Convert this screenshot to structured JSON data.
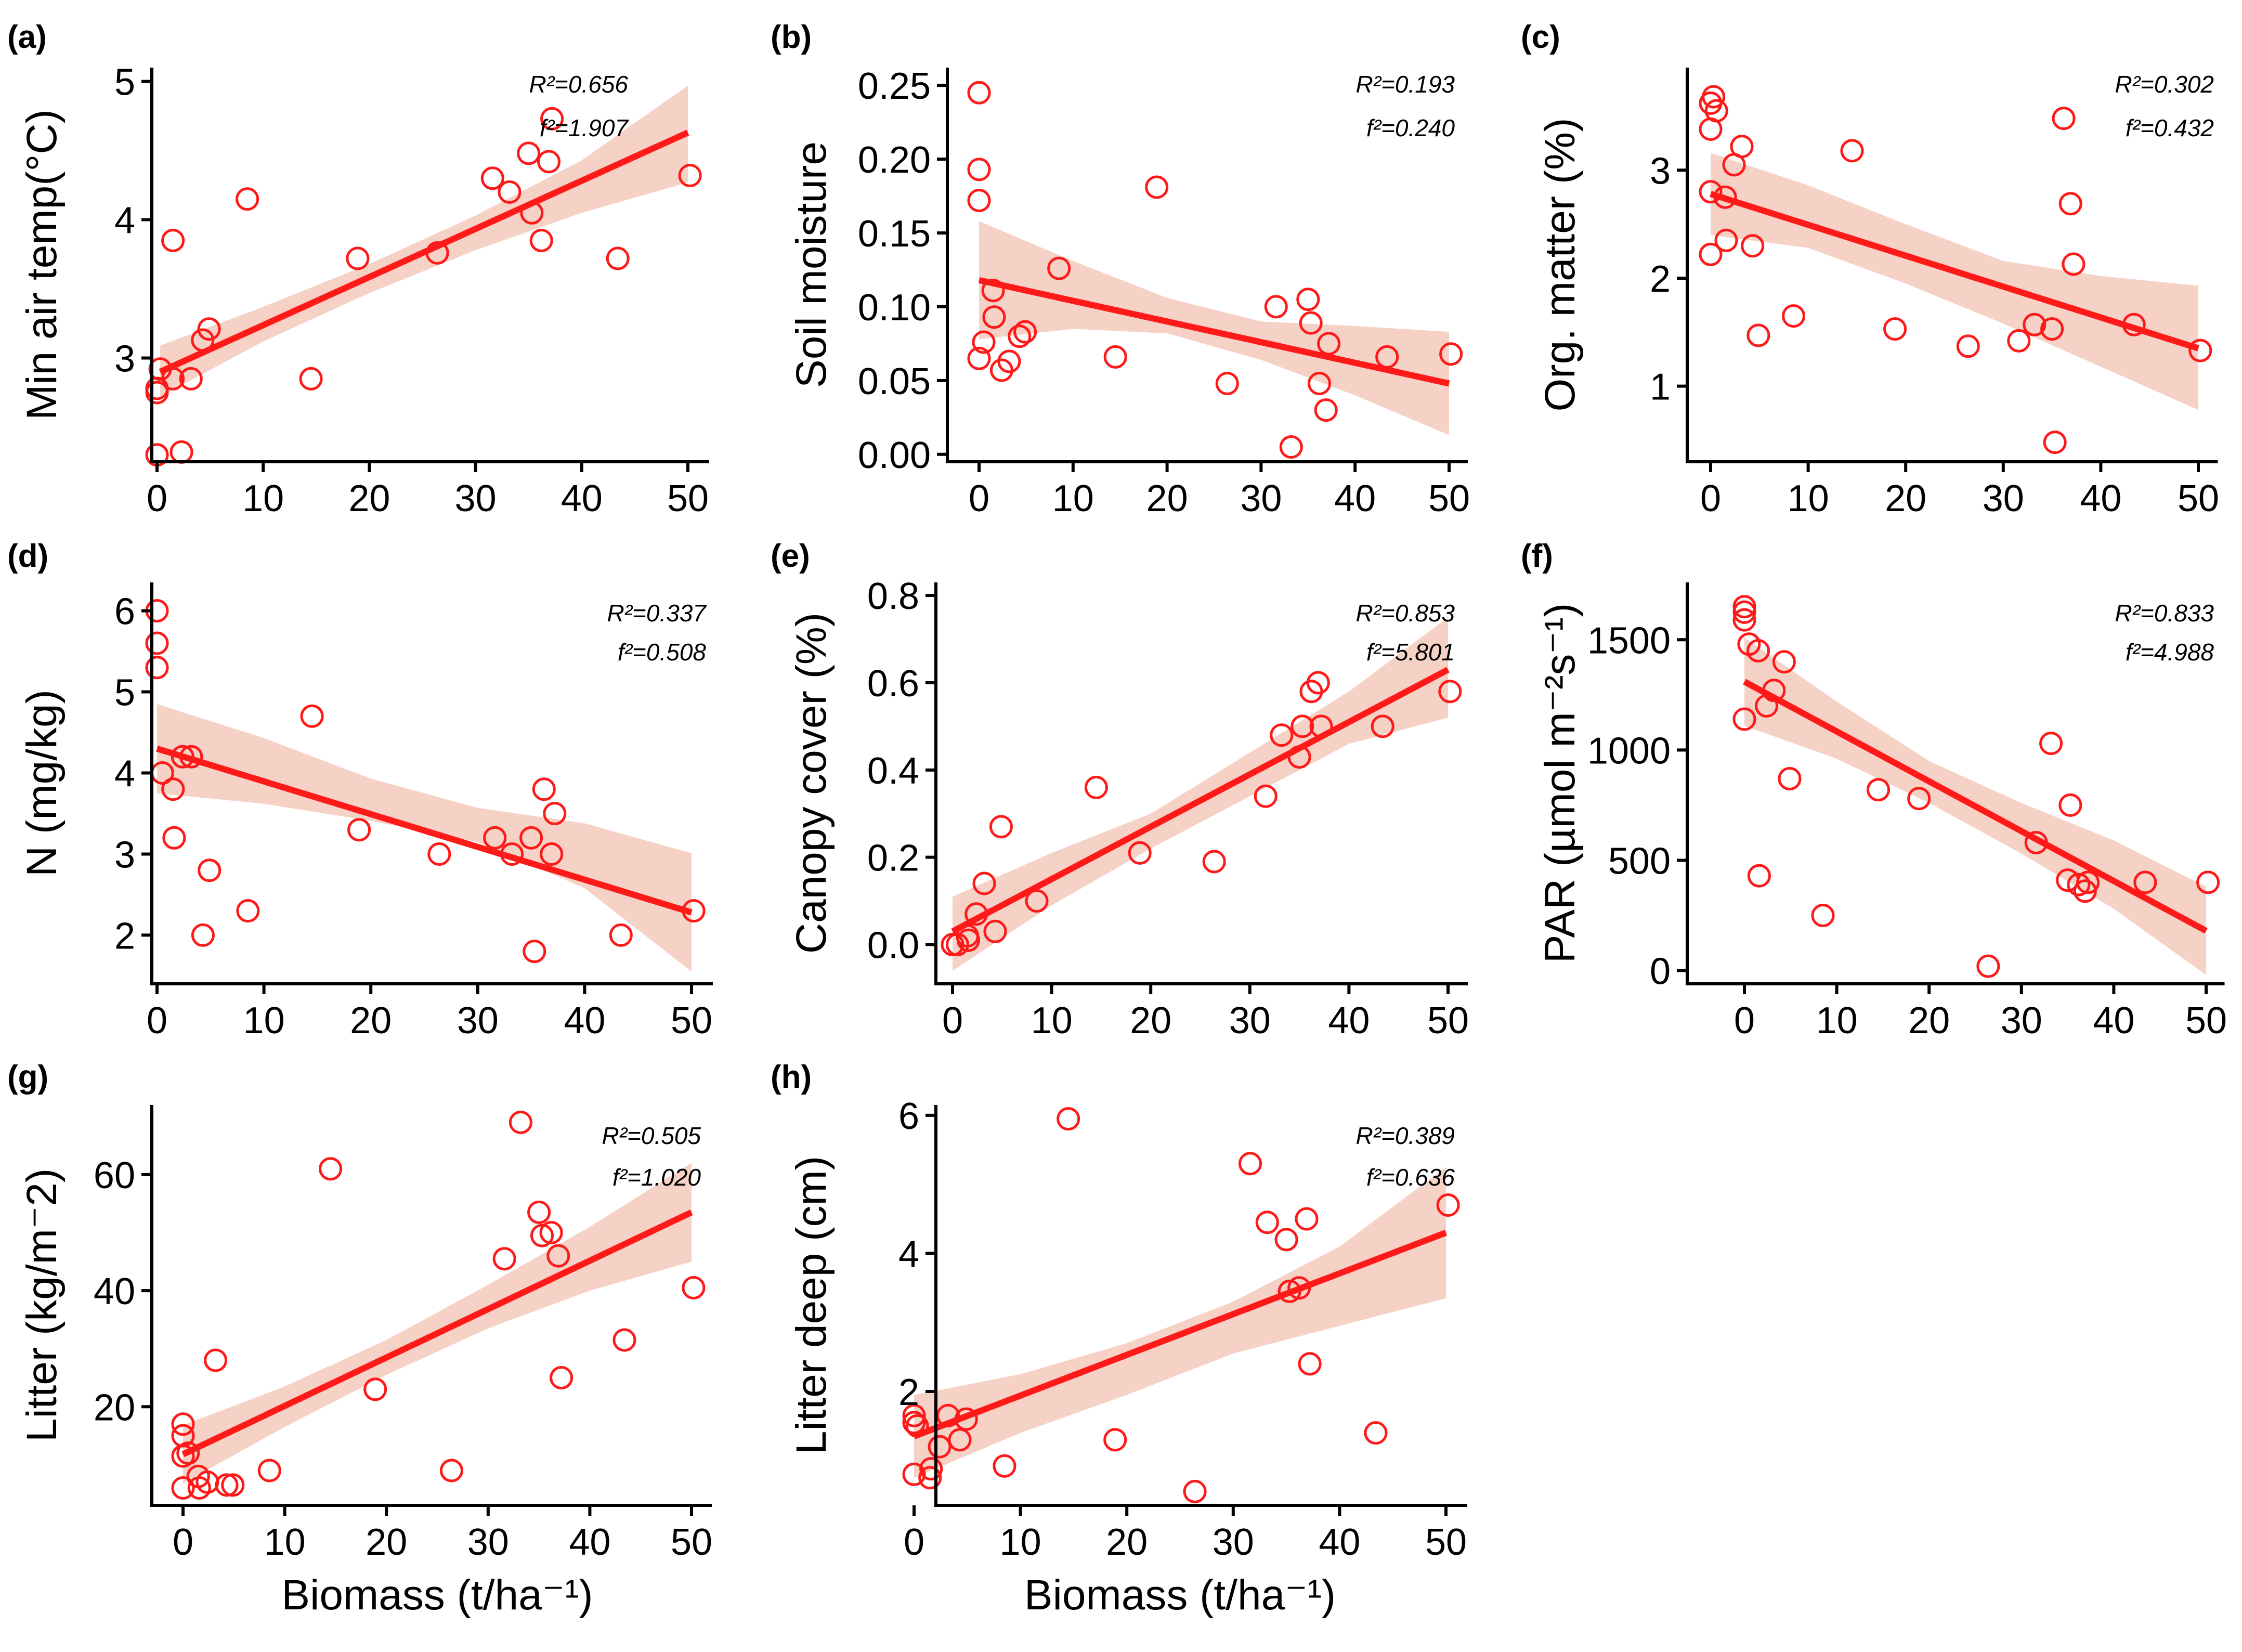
{
  "chart_data": [
    {
      "type": "scatter",
      "panel": "(a)",
      "ylabel": "Min air temp(°C)",
      "xlabel": "",
      "r2": "R²=0.656",
      "f2": "f²=1.907",
      "xlim": [
        -2,
        52
      ],
      "ylim": [
        2.25,
        5.1
      ],
      "xticks": [
        0,
        10,
        20,
        30,
        40,
        50
      ],
      "yticks": [
        3,
        4,
        5
      ],
      "x": [
        0,
        0,
        0,
        0.3,
        1.5,
        1.5,
        2.3,
        3.2,
        4.3,
        4.9,
        8.5,
        14.5,
        18.9,
        26.4,
        31.6,
        33.2,
        35,
        35.3,
        36.2,
        36.9,
        37.2,
        43.4,
        50.2
      ],
      "y": [
        2.3,
        2.75,
        2.78,
        2.92,
        2.85,
        3.85,
        2.32,
        2.85,
        3.13,
        3.21,
        4.15,
        2.85,
        3.72,
        3.76,
        4.3,
        4.2,
        4.48,
        4.05,
        3.85,
        4.42,
        4.73,
        3.72,
        4.32
      ],
      "fit": {
        "x0": 0.3,
        "y0": 2.9,
        "x1": 50,
        "y1": 4.63
      },
      "band": {
        "x": [
          0.3,
          10,
          20,
          30,
          40,
          50
        ],
        "lo": [
          2.72,
          3.12,
          3.47,
          3.78,
          4.05,
          4.27
        ],
        "hi": [
          3.09,
          3.37,
          3.68,
          4.03,
          4.43,
          4.97
        ]
      }
    },
    {
      "type": "scatter",
      "panel": "(b)",
      "ylabel": "Soil moisture",
      "xlabel": "",
      "r2": "R²=0.193",
      "f2": "f²=0.240",
      "xlim": [
        -3,
        52
      ],
      "ylim": [
        -0.005,
        0.262
      ],
      "xticks": [
        0,
        10,
        20,
        30,
        40,
        50
      ],
      "yticks": [
        0,
        0.05,
        0.1,
        0.15,
        0.2,
        0.25
      ],
      "yticklabels": [
        "0.00",
        "0.05",
        "0.10",
        "0.15",
        "0.20",
        "0.25"
      ],
      "x": [
        0,
        0,
        0,
        0,
        0.5,
        1.5,
        1.6,
        2.4,
        3.2,
        4.3,
        4.9,
        8.5,
        14.5,
        18.9,
        26.4,
        31.6,
        33.2,
        35,
        35.3,
        36.2,
        36.9,
        37.2,
        43.4,
        50.2
      ],
      "y": [
        0.245,
        0.193,
        0.172,
        0.065,
        0.076,
        0.111,
        0.093,
        0.057,
        0.063,
        0.08,
        0.083,
        0.126,
        0.066,
        0.181,
        0.048,
        0.1,
        0.005,
        0.105,
        0.089,
        0.048,
        0.03,
        0.075,
        0.066,
        0.068
      ],
      "fit": {
        "x0": 0,
        "y0": 0.118,
        "x1": 50,
        "y1": 0.048
      },
      "band": {
        "x": [
          0,
          10,
          20,
          30,
          40,
          50
        ],
        "lo": [
          0.078,
          0.085,
          0.082,
          0.064,
          0.04,
          0.013
        ],
        "hi": [
          0.158,
          0.131,
          0.106,
          0.09,
          0.087,
          0.083
        ]
      }
    },
    {
      "type": "scatter",
      "panel": "(c)",
      "ylabel": "Org. matter (%)",
      "xlabel": "",
      "r2": "R²=0.302",
      "f2": "f²=0.432",
      "xlim": [
        -2,
        52
      ],
      "ylim": [
        0.3,
        3.95
      ],
      "xticks": [
        0,
        10,
        20,
        30,
        40,
        50
      ],
      "yticks": [
        1,
        2,
        3
      ],
      "x": [
        0,
        0,
        0,
        0,
        0.3,
        0.6,
        1.5,
        1.6,
        2.4,
        3.2,
        4.3,
        4.9,
        8.5,
        14.5,
        18.9,
        26.4,
        31.6,
        33.2,
        35,
        35.3,
        36.2,
        36.9,
        37.2,
        43.4,
        50.2
      ],
      "y": [
        3.62,
        3.38,
        2.8,
        2.22,
        3.68,
        3.55,
        2.75,
        2.35,
        3.05,
        3.22,
        2.3,
        1.47,
        1.65,
        3.18,
        1.53,
        1.37,
        1.42,
        1.57,
        1.53,
        0.48,
        3.48,
        2.69,
        2.13,
        1.57,
        1.33
      ],
      "fit": {
        "x0": 0,
        "y0": 2.78,
        "x1": 50,
        "y1": 1.35
      },
      "band": {
        "x": [
          0,
          10,
          20,
          30,
          40,
          50
        ],
        "lo": [
          2.4,
          2.28,
          1.95,
          1.58,
          1.18,
          0.78
        ],
        "hi": [
          3.16,
          2.86,
          2.5,
          2.16,
          2.02,
          1.93
        ]
      }
    },
    {
      "type": "scatter",
      "panel": "(d)",
      "ylabel": "N (mg/kg)",
      "xlabel": "",
      "r2": "R²=0.337",
      "f2": "f²=0.508",
      "xlim": [
        -2,
        52
      ],
      "ylim": [
        1.4,
        6.35
      ],
      "xticks": [
        0,
        10,
        20,
        30,
        40,
        50
      ],
      "yticks": [
        2,
        3,
        4,
        5,
        6
      ],
      "x": [
        0,
        0,
        0,
        0.5,
        1.5,
        1.6,
        2.4,
        3.2,
        4.3,
        4.9,
        8.5,
        14.5,
        18.9,
        26.4,
        31.6,
        33.2,
        35,
        35.3,
        36.2,
        36.9,
        37.2,
        43.4,
        50.2
      ],
      "y": [
        6.0,
        5.6,
        5.3,
        4.0,
        3.8,
        3.2,
        4.2,
        4.2,
        2.0,
        2.8,
        2.3,
        4.7,
        3.3,
        3.0,
        3.2,
        3.0,
        3.2,
        1.8,
        3.8,
        3.0,
        3.5,
        2.0,
        2.3
      ],
      "fit": {
        "x0": 0,
        "y0": 4.3,
        "x1": 50,
        "y1": 2.28
      },
      "band": {
        "x": [
          0,
          10,
          20,
          30,
          40,
          50
        ],
        "lo": [
          3.75,
          3.62,
          3.41,
          3.15,
          2.58,
          1.55
        ],
        "hi": [
          4.85,
          4.43,
          3.93,
          3.57,
          3.38,
          3.01
        ]
      }
    },
    {
      "type": "scatter",
      "panel": "(e)",
      "ylabel": "Canopy cover (%)",
      "xlabel": "",
      "r2": "R²=0.853",
      "f2": "f²=5.801",
      "xlim": [
        -3,
        52
      ],
      "ylim": [
        -0.09,
        0.83
      ],
      "xticks": [
        0,
        10,
        20,
        30,
        40,
        50
      ],
      "yticks": [
        0,
        0.2,
        0.4,
        0.6,
        0.8
      ],
      "yticklabels": [
        "0.0",
        "0.2",
        "0.4",
        "0.6",
        "0.8"
      ],
      "x": [
        0,
        0.5,
        1.5,
        1.6,
        2.4,
        3.2,
        4.3,
        4.9,
        8.5,
        14.5,
        18.9,
        26.4,
        31.6,
        33.2,
        35,
        35.3,
        36.2,
        36.9,
        37.2,
        43.4,
        50.2
      ],
      "y": [
        0,
        0,
        0.02,
        0.01,
        0.07,
        0.14,
        0.03,
        0.27,
        0.1,
        0.36,
        0.21,
        0.19,
        0.34,
        0.48,
        0.43,
        0.5,
        0.58,
        0.6,
        0.5,
        0.5,
        0.58
      ],
      "fit": {
        "x0": 0,
        "y0": 0.03,
        "x1": 50,
        "y1": 0.63
      },
      "band": {
        "x": [
          0,
          10,
          20,
          30,
          40,
          50
        ],
        "lo": [
          -0.06,
          0.09,
          0.22,
          0.34,
          0.46,
          0.52
        ],
        "hi": [
          0.11,
          0.21,
          0.3,
          0.44,
          0.58,
          0.75
        ]
      }
    },
    {
      "type": "scatter",
      "panel": "(f)",
      "ylabel": "PAR (µmol m⁻²s⁻¹)",
      "xlabel": "",
      "r2": "R²=0.833",
      "f2": "f²=4.988",
      "xlim": [
        -2,
        52
      ],
      "ylim": [
        -60,
        1760
      ],
      "xticks": [
        0,
        10,
        20,
        30,
        40,
        50
      ],
      "yticks": [
        0,
        500,
        1000,
        1500
      ],
      "x": [
        0,
        0,
        0,
        0,
        0.5,
        1.5,
        1.6,
        2.4,
        3.2,
        4.3,
        4.9,
        8.5,
        14.5,
        18.9,
        26.4,
        31.6,
        33.2,
        35,
        35.3,
        36.2,
        36.9,
        37.2,
        43.4,
        50.2
      ],
      "y": [
        1650,
        1625,
        1590,
        1140,
        1480,
        1450,
        430,
        1200,
        1270,
        1400,
        870,
        250,
        820,
        780,
        20,
        580,
        1030,
        410,
        750,
        390,
        360,
        400,
        400,
        400
      ],
      "fit": {
        "x0": 0,
        "y0": 1310,
        "x1": 50,
        "y1": 180
      },
      "band": {
        "x": [
          0,
          10,
          20,
          30,
          40,
          50
        ],
        "lo": [
          1110,
          960,
          760,
          530,
          280,
          -20
        ],
        "hi": [
          1510,
          1220,
          950,
          760,
          590,
          380
        ]
      }
    },
    {
      "type": "scatter",
      "panel": "(g)",
      "ylabel": "Litter (kg/m⁻2)",
      "xlabel": "Biomass (t/ha⁻¹)",
      "r2": "R²=0.505",
      "f2": "f²=1.020",
      "xlim": [
        -2,
        52
      ],
      "ylim": [
        3,
        72
      ],
      "xticks": [
        0,
        10,
        20,
        30,
        40,
        50
      ],
      "yticks": [
        20,
        40,
        60
      ],
      "x": [
        0,
        0,
        0,
        0,
        0.5,
        1.5,
        1.6,
        2.4,
        3.2,
        4.3,
        4.9,
        8.5,
        14.5,
        18.9,
        26.4,
        31.6,
        33.2,
        35,
        35.3,
        36.2,
        36.9,
        37.2,
        43.4,
        50.2
      ],
      "y": [
        17,
        15,
        11.5,
        6,
        12,
        8,
        6,
        7,
        28,
        6.5,
        6.5,
        9,
        61,
        23,
        9,
        45.5,
        69,
        53.5,
        49.5,
        50,
        46,
        25,
        31.5,
        40.5
      ],
      "fit": {
        "x0": 0,
        "y0": 11.8,
        "x1": 50,
        "y1": 53.5
      },
      "band": {
        "x": [
          0,
          10,
          20,
          30,
          40,
          50
        ],
        "lo": [
          6.8,
          16.5,
          25.5,
          33.5,
          40,
          45
        ],
        "hi": [
          16.8,
          23.5,
          31.5,
          41,
          51,
          62
        ]
      }
    },
    {
      "type": "scatter",
      "panel": "(h)",
      "ylabel": "Litter deep (cm)",
      "xlabel": "Biomass (t/ha⁻¹)",
      "r2": "R²=0.389",
      "f2": "f²=0.636",
      "xlim": [
        -3,
        52
      ],
      "ylim": [
        0.35,
        6.15
      ],
      "xticks": [
        0,
        10,
        20,
        30,
        40,
        50
      ],
      "yticks": [
        2,
        4,
        6
      ],
      "x": [
        0,
        0,
        0,
        0.3,
        1.5,
        1.6,
        2.4,
        3.2,
        4.3,
        4.9,
        8.5,
        14.5,
        18.9,
        26.4,
        31.6,
        33.2,
        35,
        35.3,
        36.2,
        36.9,
        37.2,
        43.4,
        50.2
      ],
      "y": [
        1.65,
        1.55,
        0.8,
        1.5,
        0.75,
        0.88,
        1.2,
        1.65,
        1.3,
        1.6,
        0.92,
        5.95,
        1.3,
        0.55,
        5.3,
        4.45,
        4.2,
        3.45,
        3.5,
        4.5,
        2.4,
        1.4,
        4.7
      ],
      "fit": {
        "x0": 0,
        "y0": 1.35,
        "x1": 50,
        "y1": 4.3
      },
      "band": {
        "x": [
          0,
          10,
          20,
          30,
          40,
          50
        ],
        "lo": [
          0.75,
          1.4,
          1.95,
          2.55,
          2.95,
          3.35
        ],
        "hi": [
          1.95,
          2.25,
          2.7,
          3.3,
          4.1,
          5.25
        ]
      }
    }
  ]
}
